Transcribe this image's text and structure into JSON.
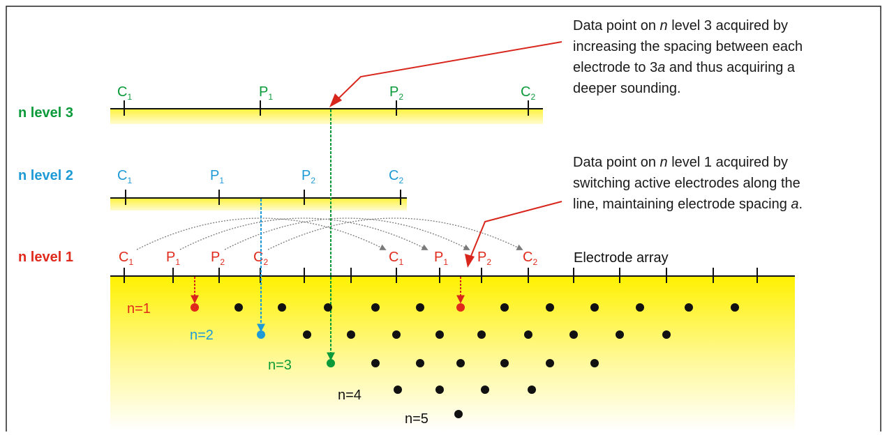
{
  "levels": [
    {
      "label": "n level 3",
      "color": "#0a9a3a"
    },
    {
      "label": "n level 2",
      "color": "#1e9ad6"
    },
    {
      "label": "n level 1",
      "color": "#e02a1c"
    }
  ],
  "electrodes": {
    "c": "C",
    "p": "P",
    "sub1": "1",
    "sub2": "2"
  },
  "electrode_array_label": "Electrode array",
  "annotation_top": {
    "line1_a": "Data point on ",
    "line1_n": "n",
    "line1_b": " level 3 acquired by",
    "line2": "increasing the spacing between each",
    "line3_a": "electrode to 3",
    "line3_a_italic": "a",
    "line3_b": " and thus acquiring a",
    "line4": "deeper sounding."
  },
  "annotation_bottom": {
    "line1_a": "Data point on ",
    "line1_n": "n",
    "line1_b": " level 1 acquired by",
    "line2": "switching active electrodes along the",
    "line3_a": "line, maintaining electrode spacing ",
    "line3_a_italic": "a",
    "line3_b": "."
  },
  "n_labels": [
    {
      "label": "n=1",
      "color": "#e02a1c"
    },
    {
      "label": "n=2",
      "color": "#1e9ad6"
    },
    {
      "label": "n=3",
      "color": "#0a9a3a"
    },
    {
      "label": "n=4",
      "color": "#111111"
    },
    {
      "label": "n=5",
      "color": "#111111"
    }
  ],
  "colors": {
    "ground": "#ffef00",
    "arrow_red": "#d9261c",
    "switch_arrows": "#7a7a7a",
    "point_black": "#111111"
  }
}
